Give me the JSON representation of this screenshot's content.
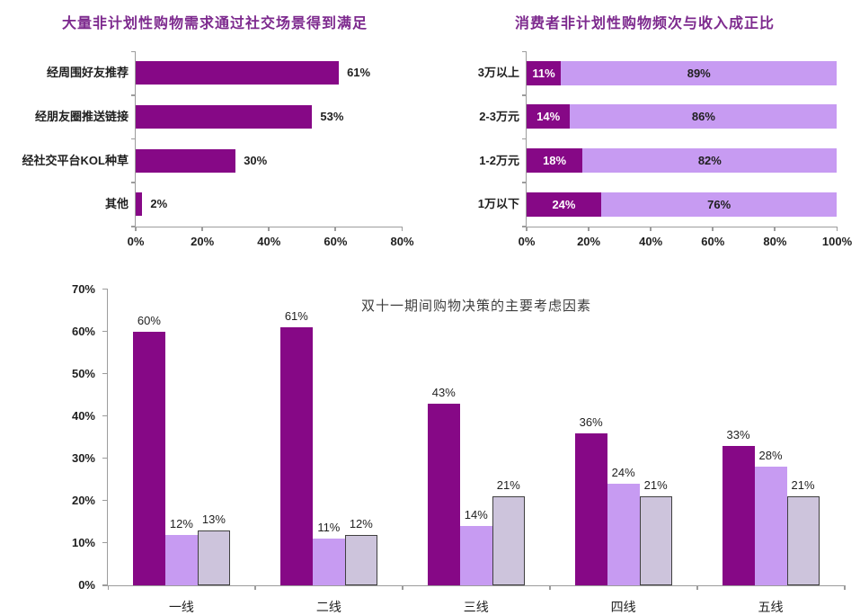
{
  "colors": {
    "title_purple": "#7d2a8e",
    "dark_purple": "#860886",
    "light_purple": "#c79bf2",
    "lavender_gray": "#cdc4dc",
    "lavender_gray_border": "#404040",
    "axis_gray": "#9c9c9c",
    "label_dark": "#1f1f1f",
    "label_white": "#ffffff"
  },
  "chart_data": [
    {
      "id": "social-channels",
      "type": "bar",
      "orientation": "horizontal",
      "title": "大量非计划性购物需求通过社交场景得到满足",
      "categories": [
        "经周围好友推荐",
        "经朋友圈推送链接",
        "经社交平台KOL种草",
        "其他"
      ],
      "values": [
        61,
        53,
        30,
        2
      ],
      "value_labels": [
        "61%",
        "53%",
        "30%",
        "2%"
      ],
      "xlim": [
        0,
        80
      ],
      "x_ticks": [
        "0%",
        "20%",
        "40%",
        "60%",
        "80%"
      ],
      "grid": "off",
      "legend": "none"
    },
    {
      "id": "income-frequency",
      "type": "bar",
      "orientation": "horizontal-stacked",
      "title": "消费者非计划性购物频次与收入成正比",
      "categories": [
        "3万以上",
        "2-3万元",
        "1-2万元",
        "1万以下"
      ],
      "series": [
        {
          "values": [
            11,
            14,
            18,
            24
          ],
          "labels": [
            "11%",
            "14%",
            "18%",
            "24%"
          ],
          "color": "dark_purple",
          "label_color": "#ffffff"
        },
        {
          "values": [
            89,
            86,
            82,
            76
          ],
          "labels": [
            "89%",
            "86%",
            "82%",
            "76%"
          ],
          "color": "light_purple",
          "label_color": "#1f1f1f"
        }
      ],
      "xlim": [
        0,
        100
      ],
      "x_ticks": [
        "0%",
        "20%",
        "40%",
        "60%",
        "80%",
        "100%"
      ],
      "grid": "off",
      "legend": "none"
    },
    {
      "id": "double11-decision-factors",
      "type": "bar",
      "orientation": "vertical-grouped",
      "title": "双十一期间购物决策的主要考虑因素",
      "categories": [
        "一线",
        "二线",
        "三线",
        "四线",
        "五线"
      ],
      "series": [
        {
          "values": [
            60,
            61,
            43,
            36,
            33
          ],
          "labels": [
            "60%",
            "61%",
            "43%",
            "36%",
            "33%"
          ],
          "color": "dark_purple"
        },
        {
          "values": [
            12,
            11,
            14,
            24,
            28
          ],
          "labels": [
            "12%",
            "11%",
            "14%",
            "24%",
            "28%"
          ],
          "color": "light_purple"
        },
        {
          "values": [
            13,
            12,
            21,
            21,
            21
          ],
          "labels": [
            "13%",
            "12%",
            "21%",
            "21%",
            "21%"
          ],
          "color": "lavender_gray",
          "border": true
        }
      ],
      "ylim": [
        0,
        70
      ],
      "y_ticks": [
        "0%",
        "10%",
        "20%",
        "30%",
        "40%",
        "50%",
        "60%",
        "70%"
      ],
      "grid": "off",
      "legend": "none"
    }
  ]
}
